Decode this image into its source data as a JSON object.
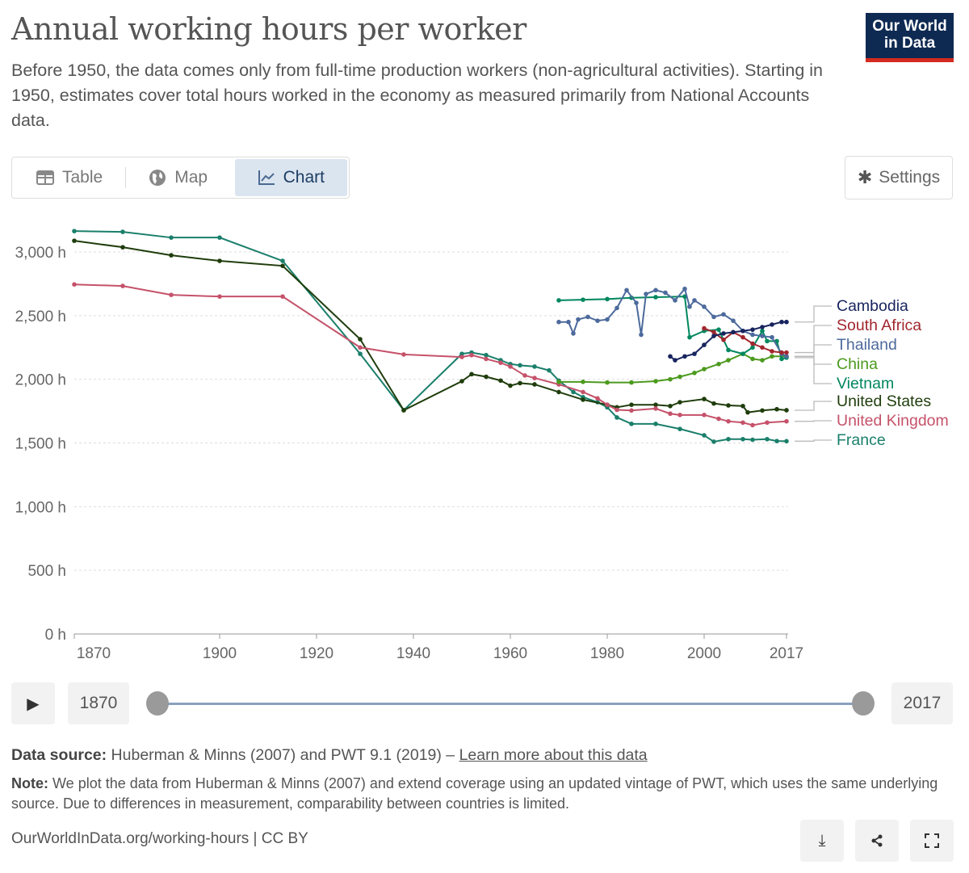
{
  "header": {
    "title": "Annual working hours per worker",
    "subtitle": "Before 1950, the data comes only from full-time production workers (non-agricultural activities). Starting in 1950, estimates cover total hours worked in the economy as measured primarily from National Accounts data.",
    "logo": "Our World in Data"
  },
  "tabs": [
    {
      "label": "Table",
      "icon": "table-icon"
    },
    {
      "label": "Map",
      "icon": "globe-icon"
    },
    {
      "label": "Chart",
      "icon": "line-chart-icon",
      "active": true
    }
  ],
  "settings_label": "Settings",
  "timeline": {
    "start": "1870",
    "end": "2017"
  },
  "footer": {
    "source_label": "Data source:",
    "source_text": "Huberman & Minns (2007) and PWT 9.1 (2019) –",
    "learn_more": "Learn more about this data",
    "note_label": "Note:",
    "note_text": "We plot the data from Huberman & Minns (2007) and extend coverage using an updated vintage of PWT, which uses the same underlying source. Due to differences in measurement, comparability between countries is limited.",
    "url": "OurWorldInData.org/working-hours | CC BY"
  },
  "chart_data": {
    "type": "line",
    "xlim": [
      1870,
      2017
    ],
    "ylim": [
      0,
      3000
    ],
    "x_ticks": [
      "1870",
      "1900",
      "1920",
      "1940",
      "1960",
      "1980",
      "2000",
      "2017"
    ],
    "y_ticks": [
      {
        "v": 0,
        "label": "0 h"
      },
      {
        "v": 500,
        "label": "500 h"
      },
      {
        "v": 1000,
        "label": "1,000 h"
      },
      {
        "v": 1500,
        "label": "1,500 h"
      },
      {
        "v": 2000,
        "label": "2,000 h"
      },
      {
        "v": 2500,
        "label": "2,500 h"
      },
      {
        "v": 3000,
        "label": "3,000 h"
      }
    ],
    "grid": "horizontal dotted",
    "legend": "right (line end labels)",
    "series": [
      {
        "name": "Cambodia",
        "color": "#18245e",
        "points": [
          [
            1993,
            2180
          ],
          [
            1994,
            2150
          ],
          [
            1996,
            2180
          ],
          [
            1998,
            2200
          ],
          [
            2000,
            2270
          ],
          [
            2002,
            2340
          ],
          [
            2004,
            2360
          ],
          [
            2006,
            2370
          ],
          [
            2008,
            2380
          ],
          [
            2010,
            2390
          ],
          [
            2012,
            2410
          ],
          [
            2014,
            2430
          ],
          [
            2016,
            2450
          ],
          [
            2017,
            2450
          ]
        ]
      },
      {
        "name": "South Africa",
        "color": "#a2262e",
        "points": [
          [
            2000,
            2400
          ],
          [
            2002,
            2370
          ],
          [
            2004,
            2310
          ],
          [
            2006,
            2370
          ],
          [
            2008,
            2330
          ],
          [
            2010,
            2280
          ],
          [
            2012,
            2250
          ],
          [
            2014,
            2220
          ],
          [
            2016,
            2210
          ],
          [
            2017,
            2210
          ]
        ]
      },
      {
        "name": "Thailand",
        "color": "#4c6a9c",
        "points": [
          [
            1970,
            2450
          ],
          [
            1972,
            2450
          ],
          [
            1973,
            2360
          ],
          [
            1974,
            2470
          ],
          [
            1976,
            2490
          ],
          [
            1978,
            2460
          ],
          [
            1980,
            2470
          ],
          [
            1982,
            2560
          ],
          [
            1984,
            2700
          ],
          [
            1986,
            2600
          ],
          [
            1987,
            2350
          ],
          [
            1988,
            2670
          ],
          [
            1990,
            2700
          ],
          [
            1992,
            2680
          ],
          [
            1994,
            2620
          ],
          [
            1996,
            2710
          ],
          [
            1997,
            2570
          ],
          [
            1998,
            2620
          ],
          [
            2000,
            2570
          ],
          [
            2002,
            2490
          ],
          [
            2004,
            2510
          ],
          [
            2006,
            2460
          ],
          [
            2008,
            2380
          ],
          [
            2010,
            2350
          ],
          [
            2012,
            2340
          ],
          [
            2014,
            2330
          ],
          [
            2016,
            2200
          ],
          [
            2017,
            2180
          ]
        ]
      },
      {
        "name": "China",
        "color": "#4c9a1e",
        "points": [
          [
            1970,
            1980
          ],
          [
            1975,
            1980
          ],
          [
            1980,
            1975
          ],
          [
            1985,
            1975
          ],
          [
            1990,
            1985
          ],
          [
            1993,
            2000
          ],
          [
            1995,
            2020
          ],
          [
            1998,
            2050
          ],
          [
            2000,
            2080
          ],
          [
            2003,
            2120
          ],
          [
            2005,
            2150
          ],
          [
            2008,
            2200
          ],
          [
            2010,
            2160
          ],
          [
            2012,
            2150
          ],
          [
            2014,
            2180
          ],
          [
            2017,
            2180
          ]
        ]
      },
      {
        "name": "Vietnam",
        "color": "#00875e",
        "points": [
          [
            1970,
            2620
          ],
          [
            1975,
            2625
          ],
          [
            1980,
            2630
          ],
          [
            1985,
            2640
          ],
          [
            1990,
            2645
          ],
          [
            1996,
            2650
          ],
          [
            1997,
            2330
          ],
          [
            2000,
            2380
          ],
          [
            2003,
            2390
          ],
          [
            2005,
            2230
          ],
          [
            2008,
            2200
          ],
          [
            2010,
            2250
          ],
          [
            2012,
            2380
          ],
          [
            2013,
            2300
          ],
          [
            2015,
            2300
          ],
          [
            2016,
            2160
          ],
          [
            2017,
            2170
          ]
        ]
      },
      {
        "name": "United States",
        "color": "#1f3d0c",
        "points": [
          [
            1870,
            3088
          ],
          [
            1880,
            3037
          ],
          [
            1890,
            2974
          ],
          [
            1900,
            2930
          ],
          [
            1913,
            2891
          ],
          [
            1929,
            2315
          ],
          [
            1938,
            1757
          ],
          [
            1950,
            1985
          ],
          [
            1952,
            2040
          ],
          [
            1955,
            2020
          ],
          [
            1958,
            1990
          ],
          [
            1960,
            1950
          ],
          [
            1962,
            1970
          ],
          [
            1965,
            1960
          ],
          [
            1970,
            1900
          ],
          [
            1975,
            1840
          ],
          [
            1980,
            1800
          ],
          [
            1982,
            1780
          ],
          [
            1985,
            1800
          ],
          [
            1990,
            1800
          ],
          [
            1993,
            1790
          ],
          [
            1995,
            1820
          ],
          [
            2000,
            1845
          ],
          [
            2002,
            1810
          ],
          [
            2005,
            1795
          ],
          [
            2008,
            1790
          ],
          [
            2009,
            1740
          ],
          [
            2012,
            1755
          ],
          [
            2015,
            1765
          ],
          [
            2017,
            1757
          ]
        ]
      },
      {
        "name": "United Kingdom",
        "color": "#c5526a",
        "points": [
          [
            1870,
            2745
          ],
          [
            1880,
            2733
          ],
          [
            1890,
            2663
          ],
          [
            1900,
            2650
          ],
          [
            1913,
            2650
          ],
          [
            1929,
            2250
          ],
          [
            1938,
            2195
          ],
          [
            1950,
            2175
          ],
          [
            1952,
            2190
          ],
          [
            1955,
            2160
          ],
          [
            1958,
            2130
          ],
          [
            1960,
            2100
          ],
          [
            1963,
            2030
          ],
          [
            1965,
            2010
          ],
          [
            1970,
            1960
          ],
          [
            1975,
            1900
          ],
          [
            1978,
            1850
          ],
          [
            1980,
            1800
          ],
          [
            1982,
            1760
          ],
          [
            1985,
            1755
          ],
          [
            1990,
            1770
          ],
          [
            1993,
            1730
          ],
          [
            1995,
            1720
          ],
          [
            2000,
            1720
          ],
          [
            2003,
            1690
          ],
          [
            2005,
            1670
          ],
          [
            2008,
            1660
          ],
          [
            2010,
            1640
          ],
          [
            2013,
            1660
          ],
          [
            2017,
            1670
          ]
        ]
      },
      {
        "name": "France",
        "color": "#1a7f6b",
        "points": [
          [
            1870,
            3164
          ],
          [
            1880,
            3158
          ],
          [
            1890,
            3113
          ],
          [
            1900,
            3113
          ],
          [
            1913,
            2930
          ],
          [
            1929,
            2200
          ],
          [
            1938,
            1757
          ],
          [
            1950,
            2200
          ],
          [
            1952,
            2210
          ],
          [
            1955,
            2190
          ],
          [
            1958,
            2150
          ],
          [
            1960,
            2120
          ],
          [
            1962,
            2110
          ],
          [
            1965,
            2100
          ],
          [
            1968,
            2070
          ],
          [
            1970,
            1990
          ],
          [
            1973,
            1900
          ],
          [
            1975,
            1860
          ],
          [
            1978,
            1820
          ],
          [
            1980,
            1780
          ],
          [
            1982,
            1700
          ],
          [
            1985,
            1650
          ],
          [
            1990,
            1650
          ],
          [
            1995,
            1610
          ],
          [
            2000,
            1560
          ],
          [
            2002,
            1510
          ],
          [
            2005,
            1530
          ],
          [
            2008,
            1530
          ],
          [
            2010,
            1525
          ],
          [
            2013,
            1530
          ],
          [
            2015,
            1515
          ],
          [
            2017,
            1514
          ]
        ]
      }
    ]
  }
}
